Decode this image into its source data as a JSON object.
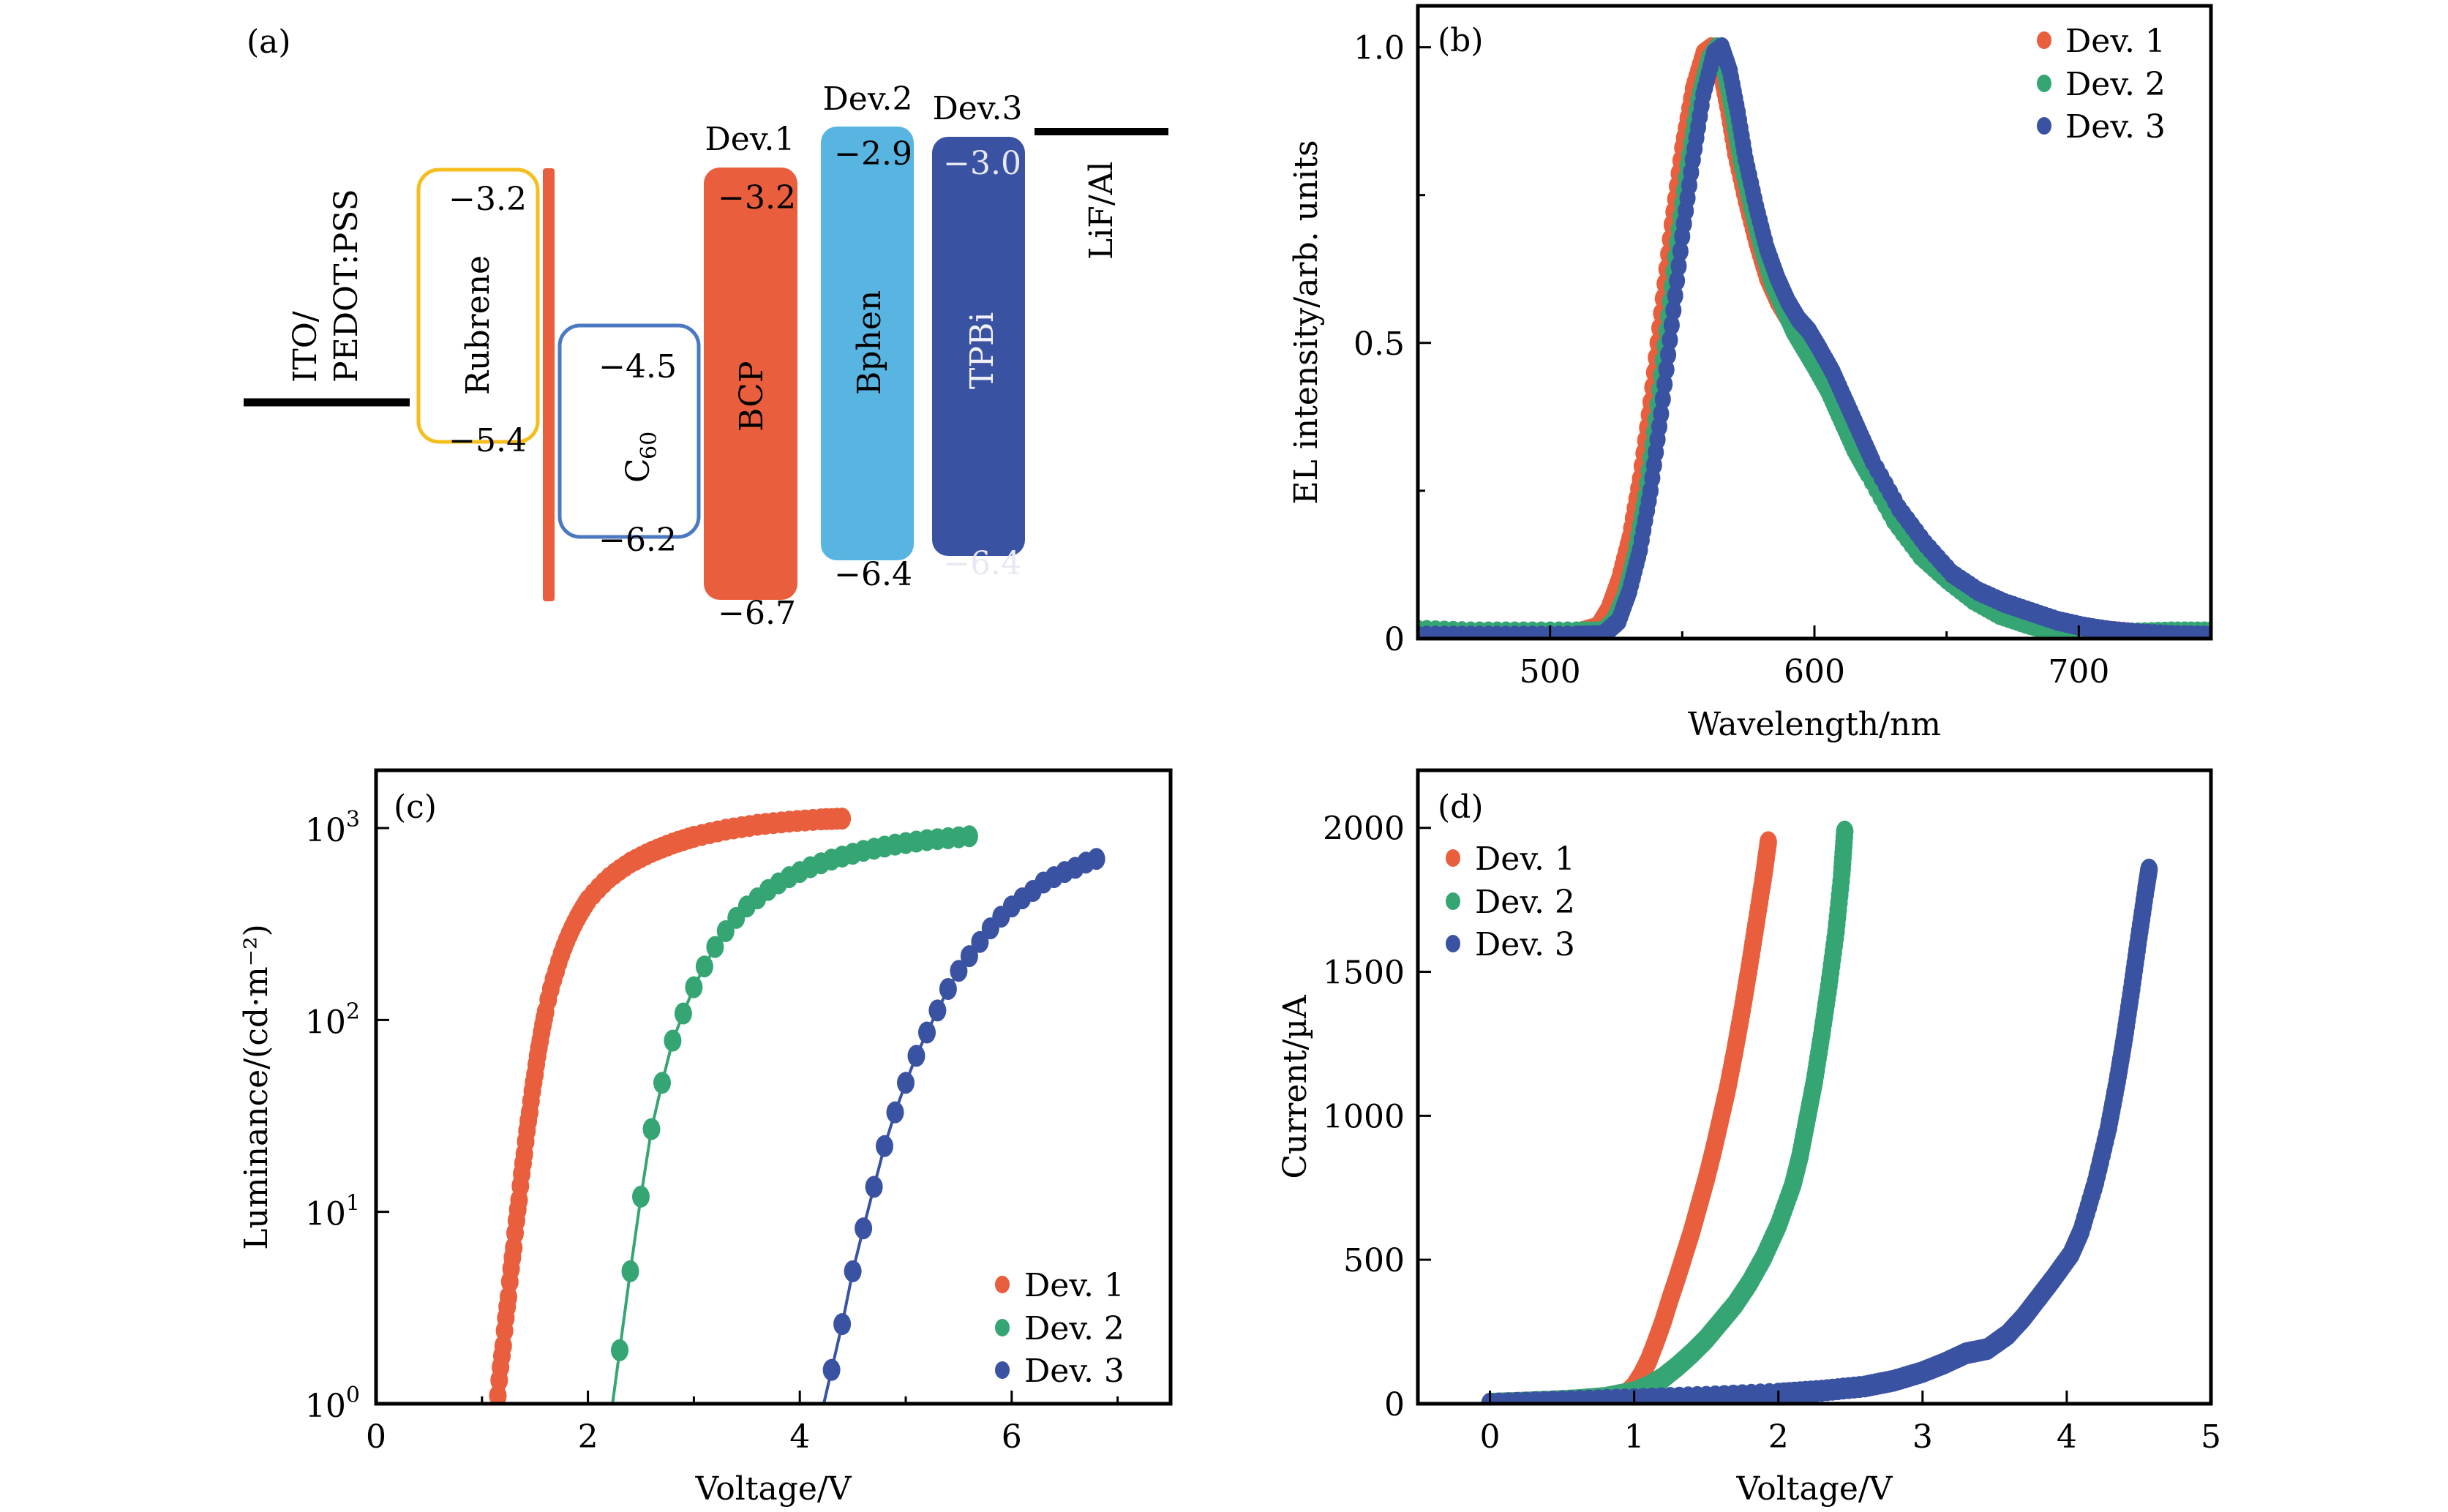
{
  "colors": {
    "dev1": "#E95E3C",
    "dev2": "#35A673",
    "dev3": "#3A52A2",
    "bphen": "#58B5E2",
    "rubrene_border": "#F5BE1E",
    "c60_border": "#4B78C2",
    "black": "#000000"
  },
  "panel_a": {
    "label": "(a)",
    "electrodes": {
      "anode_line1": "ITO/",
      "anode_line2": "PEDOT:PSS",
      "cathode": "LiF/Al"
    },
    "rubrene": {
      "name": "Rubrene",
      "lumo": "−3.2",
      "homo": "−5.4"
    },
    "c60": {
      "name": "C",
      "sub": "60",
      "lumo": "−4.5",
      "homo": "−6.2"
    },
    "bcp": {
      "device": "Dev.1",
      "name": "BCP",
      "lumo": "−3.2",
      "homo": "−6.7"
    },
    "bphen": {
      "device": "Dev.2",
      "name": "Bphen",
      "lumo": "−2.9",
      "homo": "−6.4"
    },
    "tpbi": {
      "device": "Dev.3",
      "name": "TPBi",
      "lumo": "−3.0",
      "homo": "−6.4"
    }
  },
  "chart_data": [
    {
      "id": "b",
      "panel_label": "(b)",
      "type": "scatter",
      "xlabel": "Wavelength/nm",
      "ylabel": "EL intensity/arb. units",
      "xlim": [
        450,
        750
      ],
      "ylim": [
        0,
        1.07
      ],
      "xticks": [
        500,
        600,
        700
      ],
      "xticks_minor": [
        550,
        650
      ],
      "yticks": [
        0,
        0.5,
        1.0
      ],
      "ytick_labels": [
        "0",
        "0.5",
        "1.0"
      ],
      "yticks_minor": [
        0.25,
        0.75
      ],
      "legend": {
        "position": "top-right",
        "entries": [
          "Dev. 1",
          "Dev. 2",
          "Dev. 3"
        ]
      },
      "series": [
        {
          "name": "Dev. 1",
          "color_key": "dev1",
          "x": [
            450,
            470,
            490,
            510,
            518,
            522,
            526,
            530,
            534,
            538,
            542,
            546,
            550,
            554,
            558,
            561,
            564,
            567,
            570,
            574,
            578,
            582,
            586,
            590,
            595,
            600,
            605,
            610,
            615,
            620,
            630,
            640,
            650,
            660,
            670,
            680,
            690,
            700,
            710,
            720,
            735,
            750
          ],
          "y": [
            0.01,
            0.01,
            0.01,
            0.01,
            0.02,
            0.05,
            0.1,
            0.17,
            0.27,
            0.4,
            0.55,
            0.7,
            0.83,
            0.93,
            0.99,
            1.0,
            0.97,
            0.9,
            0.82,
            0.74,
            0.67,
            0.61,
            0.57,
            0.54,
            0.51,
            0.48,
            0.44,
            0.39,
            0.34,
            0.3,
            0.22,
            0.16,
            0.11,
            0.08,
            0.055,
            0.04,
            0.028,
            0.02,
            0.014,
            0.01,
            0.008,
            0.006
          ]
        },
        {
          "name": "Dev. 2",
          "color_key": "dev2",
          "x": [
            450,
            470,
            490,
            510,
            520,
            524,
            528,
            532,
            536,
            540,
            544,
            548,
            552,
            556,
            560,
            563,
            566,
            569,
            572,
            576,
            580,
            584,
            588,
            592,
            596,
            600,
            605,
            610,
            615,
            620,
            630,
            640,
            650,
            660,
            670,
            680,
            690,
            700,
            710,
            720,
            735,
            750
          ],
          "y": [
            0.015,
            0.012,
            0.012,
            0.012,
            0.012,
            0.03,
            0.07,
            0.14,
            0.24,
            0.37,
            0.52,
            0.67,
            0.8,
            0.91,
            0.98,
            1.0,
            0.96,
            0.89,
            0.81,
            0.73,
            0.66,
            0.6,
            0.56,
            0.52,
            0.49,
            0.46,
            0.42,
            0.37,
            0.32,
            0.28,
            0.2,
            0.14,
            0.1,
            0.065,
            0.04,
            0.025,
            0.012,
            0.0,
            0.005,
            0.01,
            0.012,
            0.012
          ]
        },
        {
          "name": "Dev. 3",
          "color_key": "dev3",
          "x": [
            450,
            470,
            490,
            510,
            520,
            526,
            530,
            534,
            538,
            542,
            546,
            550,
            554,
            558,
            562,
            565,
            568,
            571,
            574,
            578,
            582,
            586,
            590,
            594,
            598,
            602,
            607,
            612,
            617,
            622,
            632,
            642,
            652,
            662,
            672,
            682,
            692,
            702,
            712,
            722,
            735,
            750
          ],
          "y": [
            0.005,
            0.005,
            0.005,
            0.005,
            0.006,
            0.03,
            0.08,
            0.15,
            0.25,
            0.38,
            0.53,
            0.68,
            0.81,
            0.92,
            0.99,
            1.0,
            0.96,
            0.89,
            0.81,
            0.73,
            0.66,
            0.61,
            0.57,
            0.54,
            0.52,
            0.49,
            0.45,
            0.4,
            0.35,
            0.3,
            0.22,
            0.16,
            0.11,
            0.08,
            0.06,
            0.045,
            0.03,
            0.02,
            0.013,
            0.009,
            0.006,
            0.005
          ]
        }
      ]
    },
    {
      "id": "c",
      "panel_label": "(c)",
      "type": "scatter",
      "yscale": "log",
      "xlabel": "Voltage/V",
      "ylabel": "Luminance/(cd·m⁻²)",
      "xlim": [
        0,
        7.5
      ],
      "ylim": [
        1,
        2000
      ],
      "xticks": [
        0,
        2,
        4,
        6
      ],
      "xticks_minor": [
        1,
        3,
        5,
        7
      ],
      "yticks": [
        1,
        10,
        100,
        1000
      ],
      "ytick_labels": [
        "10",
        "10",
        "10",
        "10"
      ],
      "ytick_exponents": [
        "0",
        "1",
        "2",
        "3"
      ],
      "legend": {
        "position": "bottom-right",
        "entries": [
          "Dev. 1",
          "Dev. 2",
          "Dev. 3"
        ]
      },
      "series": [
        {
          "name": "Dev. 1",
          "color_key": "dev1",
          "x": [
            1.15,
            1.2,
            1.25,
            1.3,
            1.35,
            1.4,
            1.45,
            1.5,
            1.55,
            1.6,
            1.7,
            1.8,
            1.9,
            2.0,
            2.2,
            2.4,
            2.6,
            2.8,
            3.0,
            3.3,
            3.6,
            3.9,
            4.2,
            4.4
          ],
          "y": [
            1.1,
            2.0,
            3.6,
            6.5,
            11.5,
            20,
            33,
            52,
            78,
            110,
            180,
            260,
            340,
            420,
            550,
            660,
            750,
            830,
            900,
            980,
            1040,
            1080,
            1110,
            1120
          ]
        },
        {
          "name": "Dev. 2",
          "color_key": "dev2",
          "x": [
            2.3,
            2.4,
            2.5,
            2.6,
            2.7,
            2.8,
            2.9,
            3.0,
            3.1,
            3.2,
            3.3,
            3.4,
            3.5,
            3.6,
            3.7,
            3.8,
            3.9,
            4.0,
            4.1,
            4.2,
            4.3,
            4.4,
            4.5,
            4.6,
            4.7,
            4.8,
            4.9,
            5.0,
            5.1,
            5.2,
            5.3,
            5.4,
            5.5,
            5.6
          ],
          "y": [
            1.9,
            4.9,
            12,
            27,
            47,
            78,
            108,
            148,
            190,
            240,
            290,
            340,
            390,
            430,
            475,
            515,
            555,
            590,
            625,
            655,
            685,
            710,
            735,
            760,
            780,
            800,
            820,
            835,
            850,
            865,
            875,
            885,
            895,
            905
          ]
        },
        {
          "name": "Dev. 3",
          "color_key": "dev3",
          "x": [
            4.3,
            4.4,
            4.5,
            4.6,
            4.7,
            4.8,
            4.9,
            5.0,
            5.1,
            5.2,
            5.3,
            5.4,
            5.5,
            5.6,
            5.7,
            5.8,
            5.9,
            6.0,
            6.1,
            6.2,
            6.3,
            6.4,
            6.5,
            6.6,
            6.7,
            6.8
          ],
          "y": [
            1.5,
            2.6,
            4.9,
            8.2,
            13.5,
            22,
            33,
            47,
            65,
            86,
            112,
            145,
            180,
            215,
            255,
            300,
            345,
            390,
            430,
            470,
            520,
            555,
            590,
            620,
            660,
            690
          ]
        }
      ]
    },
    {
      "id": "d",
      "panel_label": "(d)",
      "type": "scatter",
      "xlabel": "Voltage/V",
      "ylabel": "Current/µA",
      "xlim": [
        -0.5,
        5
      ],
      "ylim": [
        0,
        2200
      ],
      "xticks": [
        0,
        1,
        2,
        3,
        4,
        5
      ],
      "yticks": [
        0,
        500,
        1000,
        1500,
        2000
      ],
      "legend": {
        "position": "top-left",
        "entries": [
          "Dev. 1",
          "Dev. 2",
          "Dev. 3"
        ]
      },
      "series": [
        {
          "name": "Dev. 1",
          "color_key": "dev1",
          "x": [
            0,
            0.2,
            0.4,
            0.6,
            0.8,
            0.95,
            1.0,
            1.05,
            1.1,
            1.15,
            1.2,
            1.25,
            1.3,
            1.35,
            1.4,
            1.45,
            1.5,
            1.55,
            1.6,
            1.65,
            1.7,
            1.75,
            1.8,
            1.85,
            1.9,
            1.93
          ],
          "y": [
            0,
            3,
            7,
            12,
            20,
            35,
            60,
            100,
            150,
            215,
            285,
            365,
            440,
            520,
            600,
            690,
            780,
            880,
            990,
            1100,
            1230,
            1370,
            1520,
            1680,
            1840,
            1950
          ]
        },
        {
          "name": "Dev. 2",
          "color_key": "dev2",
          "x": [
            0,
            0.2,
            0.4,
            0.6,
            0.8,
            1.0,
            1.1,
            1.2,
            1.3,
            1.4,
            1.5,
            1.6,
            1.7,
            1.8,
            1.9,
            2.0,
            2.1,
            2.15,
            2.2,
            2.25,
            2.3,
            2.35,
            2.4,
            2.44,
            2.46
          ],
          "y": [
            0,
            3,
            7,
            12,
            20,
            40,
            60,
            90,
            130,
            175,
            225,
            285,
            345,
            420,
            510,
            620,
            760,
            860,
            990,
            1120,
            1280,
            1450,
            1640,
            1840,
            1987
          ]
        },
        {
          "name": "Dev. 3",
          "color_key": "dev3",
          "x": [
            0,
            0.5,
            1.0,
            1.5,
            2.0,
            2.3,
            2.6,
            2.8,
            3.0,
            3.15,
            3.3,
            3.45,
            3.59,
            3.7,
            3.8,
            3.9,
            4.03,
            4.1,
            4.2,
            4.29,
            4.35,
            4.4,
            4.45,
            4.5,
            4.55,
            4.57
          ],
          "y": [
            0,
            8,
            16,
            24,
            35,
            45,
            60,
            80,
            110,
            140,
            175,
            190,
            240,
            300,
            365,
            430,
            520,
            600,
            770,
            960,
            1120,
            1270,
            1440,
            1620,
            1790,
            1855
          ]
        }
      ]
    }
  ]
}
